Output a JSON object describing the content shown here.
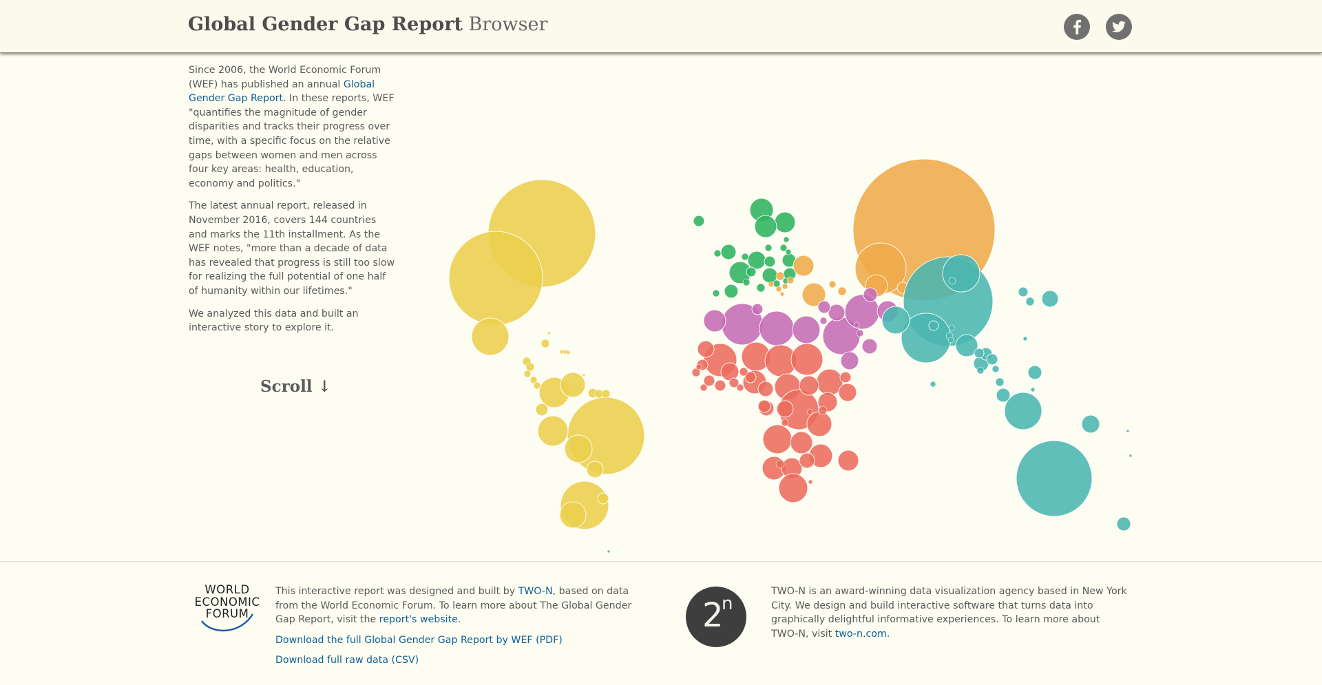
{
  "header": {
    "title_bold": "Global Gender Gap Report",
    "title_light": "Browser",
    "facebook_icon": "facebook-icon",
    "twitter_icon": "twitter-icon"
  },
  "intro": {
    "p1_pre": "Since 2006, the World Economic Forum (WEF) has published an annual ",
    "p1_link": "Global Gender Gap Report",
    "p1_post": ". In these reports, WEF \"quantifies the magnitude of gender disparities and tracks their progress over time, with a specific focus on the relative gaps between women and men across four key areas: health, education, economy and politics.\"",
    "p2": "The latest annual report, released in November 2016, covers 144 countries and marks the 11th installment. As the WEF notes, \"more than a decade of data has revealed that progress is still too slow for realizing the full potential of one half of humanity within our lifetimes.\"",
    "p3": "We analyzed this data and built an interactive story to explore it."
  },
  "scroll_hint": "Scroll ↓",
  "colors": {
    "americas": "#eccf4d",
    "europe": "#2fb35f",
    "mena": "#c56bb4",
    "africa": "#ec6c5c",
    "central_asia": "#efaa4a",
    "asia_pacific": "#4ab6b0"
  },
  "footer": {
    "wef_logo_lines": [
      "WORLD",
      "ECONOMIC",
      "FORUM"
    ],
    "wef_text_pre": "This interactive report was designed and built by ",
    "wef_text_link": "TWO-N",
    "wef_text_mid": ", based on data from the World Economic Forum. To learn more about The Global Gender Gap Report, visit the ",
    "wef_text_link2": "report's website",
    "wef_text_post": ".",
    "download_pdf": "Download the full Global Gender Gap Report by WEF (PDF)",
    "download_csv": "Download full raw data (CSV)",
    "twon_logo_main": "2",
    "twon_logo_sup": "n",
    "twon_text_pre": "TWO-N is an award-winning data visualization agency based in New York City. We design and build interactive software that turns data into graphically delightful informative experiences. To learn more about TWO-N, visit ",
    "twon_text_link": "two-n.com",
    "twon_text_post": "."
  }
}
